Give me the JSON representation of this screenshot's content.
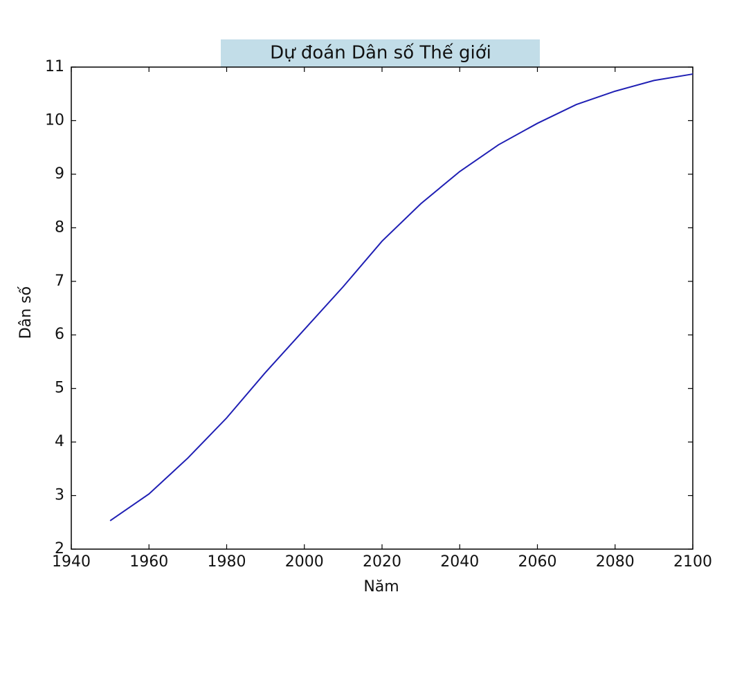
{
  "chart_data": {
    "type": "line",
    "title": "Dự đoán Dân số Thế giới",
    "xlabel": "Năm",
    "ylabel": "Dân số",
    "x": [
      1950,
      1960,
      1970,
      1980,
      1990,
      2000,
      2010,
      2020,
      2030,
      2040,
      2050,
      2060,
      2070,
      2080,
      2090,
      2100
    ],
    "series": [
      {
        "color": "#1f1fb4",
        "values": [
          2.53,
          3.03,
          3.7,
          4.45,
          5.3,
          6.1,
          6.9,
          7.75,
          8.45,
          9.05,
          9.55,
          9.95,
          10.3,
          10.55,
          10.75,
          10.87
        ]
      }
    ],
    "xlim": [
      1940,
      2100
    ],
    "xticks": [
      1940,
      1960,
      1980,
      2000,
      2020,
      2040,
      2060,
      2080,
      2100
    ],
    "ylim": [
      2,
      11
    ],
    "yticks": [
      2,
      3,
      4,
      5,
      6,
      7,
      8,
      9,
      10,
      11
    ],
    "grid": false
  }
}
